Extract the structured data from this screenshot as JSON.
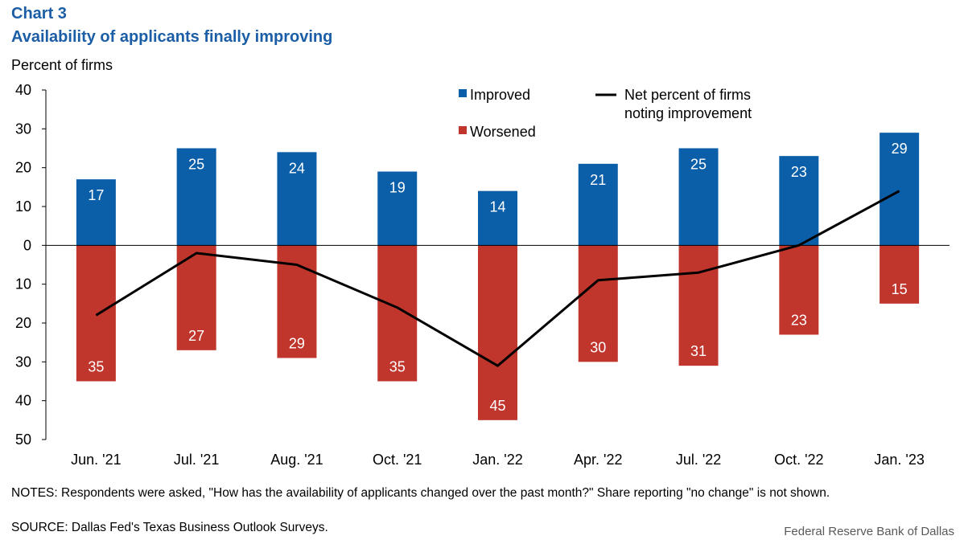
{
  "header": {
    "chart_label": "Chart 3",
    "title": "Availability of applicants finally improving"
  },
  "footer": {
    "notes": "NOTES: Respondents were asked, \"How has the availability of applicants changed over the past month?\" Share reporting \"no change\" is not shown.",
    "source": "SOURCE: Dallas Fed's Texas Business Outlook Surveys.",
    "credit": "Federal Reserve Bank of Dallas"
  },
  "colors": {
    "improved": "#0b5ea8",
    "worsened": "#c0362c",
    "net": "#000000",
    "title": "#1b5ea6"
  },
  "chart_data": {
    "type": "bar",
    "title": "Availability of applicants finally improving",
    "ylabel": "Percent of firms",
    "xlabel": "",
    "categories": [
      "Jun. '21",
      "Jul. '21",
      "Aug. '21",
      "Oct. '21",
      "Jan. '22",
      "Apr. '22",
      "Jul. '22",
      "Oct. '22",
      "Jan. '23"
    ],
    "series": [
      {
        "name": "Improved",
        "type": "bar",
        "values": [
          17,
          25,
          24,
          19,
          14,
          21,
          25,
          23,
          29
        ]
      },
      {
        "name": "Worsened",
        "type": "bar",
        "values": [
          35,
          27,
          29,
          35,
          45,
          30,
          31,
          23,
          15
        ]
      },
      {
        "name": "Net percent of firms noting improvement",
        "type": "line",
        "values": [
          -18,
          -2,
          -5,
          -16,
          -31,
          -9,
          -7,
          0,
          14
        ]
      }
    ],
    "ylim": [
      -50,
      40
    ],
    "yticks": [
      40,
      30,
      20,
      10,
      0,
      -10,
      -20,
      -30,
      -40,
      -50
    ],
    "ytick_labels": [
      "40",
      "30",
      "20",
      "10",
      "0",
      "10",
      "20",
      "30",
      "40",
      "50"
    ],
    "legend": {
      "placement": "top-center",
      "improved_label": "Improved",
      "worsened_label": "Worsened",
      "net_label_line1": "Net percent of firms",
      "net_label_line2": "noting improvement"
    },
    "grid": false
  }
}
